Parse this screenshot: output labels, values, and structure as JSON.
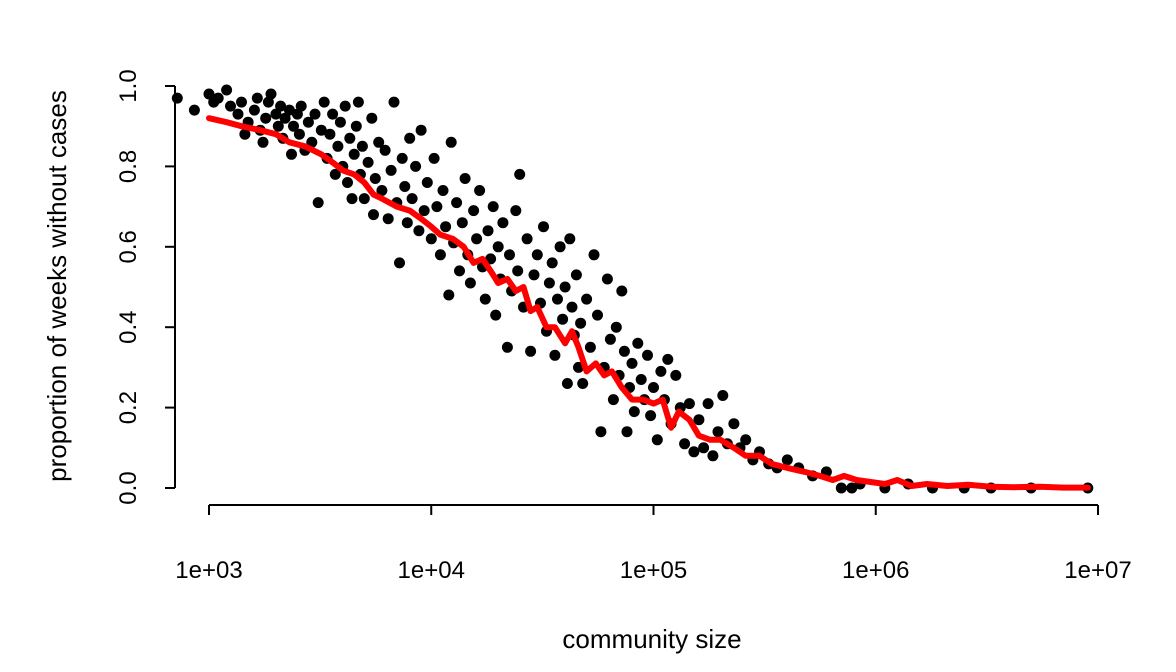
{
  "chart_data": {
    "type": "scatter",
    "title": "",
    "xlabel": "community size",
    "ylabel": "proportion of weeks without cases",
    "x_scale": "log10",
    "xlim": [
      700,
      11000000
    ],
    "ylim": [
      0,
      1
    ],
    "x_ticks": [
      {
        "value": 1000,
        "label": "1e+03"
      },
      {
        "value": 10000,
        "label": "1e+04"
      },
      {
        "value": 100000,
        "label": "1e+05"
      },
      {
        "value": 1000000,
        "label": "1e+06"
      },
      {
        "value": 10000000,
        "label": "1e+07"
      }
    ],
    "y_ticks": [
      {
        "value": 0.0,
        "label": "0.0"
      },
      {
        "value": 0.2,
        "label": "0.2"
      },
      {
        "value": 0.4,
        "label": "0.4"
      },
      {
        "value": 0.6,
        "label": "0.6"
      },
      {
        "value": 0.8,
        "label": "0.8"
      },
      {
        "value": 1.0,
        "label": "1.0"
      }
    ],
    "grid": false,
    "colors": {
      "points": "#000000",
      "trend": "#ff0000"
    },
    "series": [
      {
        "kind": "points",
        "points": [
          [
            720,
            0.97
          ],
          [
            860,
            0.94
          ],
          [
            1000,
            0.98
          ],
          [
            1050,
            0.96
          ],
          [
            1100,
            0.97
          ],
          [
            1200,
            0.99
          ],
          [
            1250,
            0.95
          ],
          [
            1350,
            0.93
          ],
          [
            1400,
            0.96
          ],
          [
            1450,
            0.88
          ],
          [
            1500,
            0.91
          ],
          [
            1600,
            0.94
          ],
          [
            1650,
            0.97
          ],
          [
            1700,
            0.89
          ],
          [
            1750,
            0.86
          ],
          [
            1800,
            0.92
          ],
          [
            1850,
            0.96
          ],
          [
            1900,
            0.98
          ],
          [
            2000,
            0.93
          ],
          [
            2050,
            0.9
          ],
          [
            2100,
            0.95
          ],
          [
            2150,
            0.87
          ],
          [
            2200,
            0.92
          ],
          [
            2300,
            0.94
          ],
          [
            2350,
            0.83
          ],
          [
            2400,
            0.9
          ],
          [
            2500,
            0.93
          ],
          [
            2550,
            0.88
          ],
          [
            2600,
            0.95
          ],
          [
            2700,
            0.84
          ],
          [
            2800,
            0.91
          ],
          [
            2900,
            0.86
          ],
          [
            3000,
            0.93
          ],
          [
            3100,
            0.71
          ],
          [
            3200,
            0.89
          ],
          [
            3300,
            0.96
          ],
          [
            3400,
            0.82
          ],
          [
            3500,
            0.88
          ],
          [
            3600,
            0.93
          ],
          [
            3700,
            0.78
          ],
          [
            3800,
            0.85
          ],
          [
            3900,
            0.91
          ],
          [
            4000,
            0.8
          ],
          [
            4100,
            0.95
          ],
          [
            4200,
            0.76
          ],
          [
            4300,
            0.87
          ],
          [
            4400,
            0.72
          ],
          [
            4500,
            0.83
          ],
          [
            4600,
            0.9
          ],
          [
            4700,
            0.96
          ],
          [
            4800,
            0.78
          ],
          [
            4900,
            0.85
          ],
          [
            5000,
            0.72
          ],
          [
            5200,
            0.81
          ],
          [
            5400,
            0.92
          ],
          [
            5500,
            0.68
          ],
          [
            5600,
            0.77
          ],
          [
            5800,
            0.86
          ],
          [
            6000,
            0.74
          ],
          [
            6200,
            0.84
          ],
          [
            6400,
            0.67
          ],
          [
            6600,
            0.79
          ],
          [
            6800,
            0.96
          ],
          [
            7000,
            0.71
          ],
          [
            7200,
            0.56
          ],
          [
            7400,
            0.82
          ],
          [
            7600,
            0.75
          ],
          [
            7800,
            0.66
          ],
          [
            8000,
            0.87
          ],
          [
            8200,
            0.72
          ],
          [
            8500,
            0.8
          ],
          [
            8800,
            0.64
          ],
          [
            9000,
            0.89
          ],
          [
            9300,
            0.69
          ],
          [
            9600,
            0.76
          ],
          [
            10000,
            0.62
          ],
          [
            10300,
            0.82
          ],
          [
            10600,
            0.7
          ],
          [
            11000,
            0.58
          ],
          [
            11300,
            0.74
          ],
          [
            11600,
            0.65
          ],
          [
            12000,
            0.48
          ],
          [
            12300,
            0.86
          ],
          [
            12600,
            0.61
          ],
          [
            13000,
            0.71
          ],
          [
            13400,
            0.54
          ],
          [
            13800,
            0.66
          ],
          [
            14200,
            0.77
          ],
          [
            14600,
            0.58
          ],
          [
            15000,
            0.51
          ],
          [
            15500,
            0.69
          ],
          [
            16000,
            0.62
          ],
          [
            16500,
            0.74
          ],
          [
            17000,
            0.55
          ],
          [
            17500,
            0.47
          ],
          [
            18000,
            0.64
          ],
          [
            18500,
            0.57
          ],
          [
            19000,
            0.7
          ],
          [
            19500,
            0.43
          ],
          [
            20000,
            0.6
          ],
          [
            20500,
            0.52
          ],
          [
            21000,
            0.66
          ],
          [
            22000,
            0.35
          ],
          [
            22500,
            0.58
          ],
          [
            23000,
            0.49
          ],
          [
            24000,
            0.69
          ],
          [
            24500,
            0.54
          ],
          [
            25000,
            0.78
          ],
          [
            26000,
            0.45
          ],
          [
            27000,
            0.62
          ],
          [
            28000,
            0.34
          ],
          [
            29000,
            0.53
          ],
          [
            30000,
            0.58
          ],
          [
            31000,
            0.46
          ],
          [
            32000,
            0.65
          ],
          [
            33000,
            0.39
          ],
          [
            34000,
            0.51
          ],
          [
            35000,
            0.56
          ],
          [
            36000,
            0.33
          ],
          [
            37000,
            0.47
          ],
          [
            38000,
            0.6
          ],
          [
            39000,
            0.42
          ],
          [
            40000,
            0.5
          ],
          [
            41000,
            0.26
          ],
          [
            42000,
            0.62
          ],
          [
            43000,
            0.45
          ],
          [
            44000,
            0.38
          ],
          [
            45000,
            0.53
          ],
          [
            46000,
            0.3
          ],
          [
            47000,
            0.41
          ],
          [
            48000,
            0.26
          ],
          [
            50000,
            0.47
          ],
          [
            52000,
            0.35
          ],
          [
            54000,
            0.58
          ],
          [
            56000,
            0.43
          ],
          [
            58000,
            0.14
          ],
          [
            60000,
            0.3
          ],
          [
            62000,
            0.52
          ],
          [
            64000,
            0.37
          ],
          [
            66000,
            0.22
          ],
          [
            68000,
            0.4
          ],
          [
            70000,
            0.28
          ],
          [
            72000,
            0.49
          ],
          [
            74000,
            0.34
          ],
          [
            76000,
            0.14
          ],
          [
            78000,
            0.25
          ],
          [
            80000,
            0.31
          ],
          [
            82000,
            0.19
          ],
          [
            85000,
            0.36
          ],
          [
            88000,
            0.27
          ],
          [
            91000,
            0.22
          ],
          [
            94000,
            0.33
          ],
          [
            97000,
            0.18
          ],
          [
            100000,
            0.25
          ],
          [
            104000,
            0.12
          ],
          [
            108000,
            0.29
          ],
          [
            112000,
            0.22
          ],
          [
            116000,
            0.32
          ],
          [
            120000,
            0.16
          ],
          [
            126000,
            0.28
          ],
          [
            132000,
            0.2
          ],
          [
            138000,
            0.11
          ],
          [
            145000,
            0.21
          ],
          [
            152000,
            0.09
          ],
          [
            160000,
            0.17
          ],
          [
            168000,
            0.1
          ],
          [
            176000,
            0.21
          ],
          [
            185000,
            0.08
          ],
          [
            195000,
            0.14
          ],
          [
            205000,
            0.23
          ],
          [
            215000,
            0.11
          ],
          [
            230000,
            0.16
          ],
          [
            245000,
            0.1
          ],
          [
            260000,
            0.12
          ],
          [
            280000,
            0.07
          ],
          [
            300000,
            0.09
          ],
          [
            330000,
            0.06
          ],
          [
            360000,
            0.05
          ],
          [
            400000,
            0.07
          ],
          [
            450000,
            0.05
          ],
          [
            520000,
            0.03
          ],
          [
            600000,
            0.04
          ],
          [
            700000,
            0.0
          ],
          [
            780000,
            0.0
          ],
          [
            850000,
            0.01
          ],
          [
            1100000,
            0.0
          ],
          [
            1400000,
            0.01
          ],
          [
            1800000,
            0.0
          ],
          [
            2500000,
            0.0
          ],
          [
            3300000,
            0.0
          ],
          [
            5000000,
            0.0
          ],
          [
            9000000,
            0.0
          ]
        ]
      },
      {
        "kind": "line",
        "points": [
          [
            1000,
            0.92
          ],
          [
            1200,
            0.91
          ],
          [
            1400,
            0.9
          ],
          [
            1700,
            0.89
          ],
          [
            2000,
            0.88
          ],
          [
            2300,
            0.86
          ],
          [
            2700,
            0.85
          ],
          [
            3200,
            0.83
          ],
          [
            3600,
            0.81
          ],
          [
            4000,
            0.79
          ],
          [
            4500,
            0.78
          ],
          [
            5000,
            0.76
          ],
          [
            5500,
            0.73
          ],
          [
            6000,
            0.72
          ],
          [
            7000,
            0.7
          ],
          [
            8000,
            0.69
          ],
          [
            9000,
            0.67
          ],
          [
            10000,
            0.65
          ],
          [
            11000,
            0.63
          ],
          [
            12500,
            0.62
          ],
          [
            14000,
            0.6
          ],
          [
            15500,
            0.56
          ],
          [
            17000,
            0.57
          ],
          [
            18500,
            0.54
          ],
          [
            20000,
            0.51
          ],
          [
            22000,
            0.52
          ],
          [
            24000,
            0.49
          ],
          [
            26000,
            0.5
          ],
          [
            28000,
            0.44
          ],
          [
            30000,
            0.45
          ],
          [
            33000,
            0.4
          ],
          [
            36000,
            0.4
          ],
          [
            40000,
            0.36
          ],
          [
            43000,
            0.39
          ],
          [
            46000,
            0.35
          ],
          [
            50000,
            0.29
          ],
          [
            55000,
            0.31
          ],
          [
            60000,
            0.28
          ],
          [
            65000,
            0.29
          ],
          [
            72000,
            0.25
          ],
          [
            80000,
            0.22
          ],
          [
            90000,
            0.22
          ],
          [
            100000,
            0.21
          ],
          [
            110000,
            0.22
          ],
          [
            120000,
            0.15
          ],
          [
            130000,
            0.19
          ],
          [
            145000,
            0.17
          ],
          [
            160000,
            0.13
          ],
          [
            180000,
            0.12
          ],
          [
            200000,
            0.12
          ],
          [
            230000,
            0.1
          ],
          [
            260000,
            0.08
          ],
          [
            300000,
            0.08
          ],
          [
            340000,
            0.06
          ],
          [
            400000,
            0.05
          ],
          [
            480000,
            0.04
          ],
          [
            560000,
            0.03
          ],
          [
            640000,
            0.02
          ],
          [
            720000,
            0.03
          ],
          [
            820000,
            0.02
          ],
          [
            950000,
            0.015
          ],
          [
            1100000,
            0.01
          ],
          [
            1250000,
            0.02
          ],
          [
            1450000,
            0.005
          ],
          [
            1700000,
            0.01
          ],
          [
            2100000,
            0.005
          ],
          [
            2600000,
            0.008
          ],
          [
            3300000,
            0.003
          ],
          [
            4200000,
            0.002
          ],
          [
            5500000,
            0.003
          ],
          [
            7000000,
            0.001
          ],
          [
            9000000,
            0.001
          ]
        ]
      }
    ]
  }
}
